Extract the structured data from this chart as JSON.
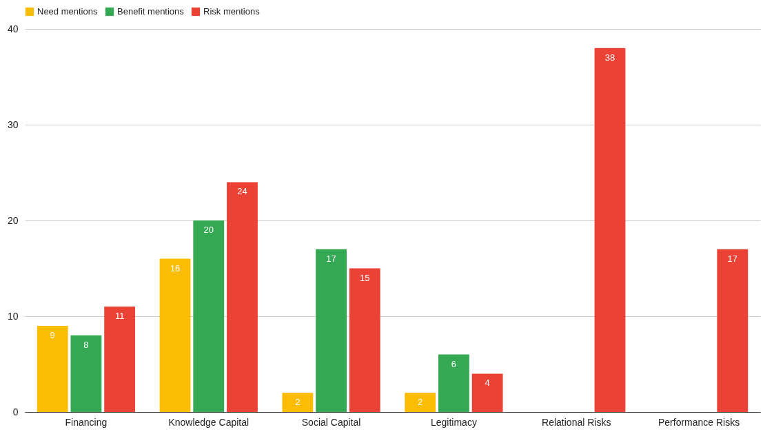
{
  "chart_data": {
    "type": "bar",
    "categories": [
      "Financing",
      "Knowledge Capital",
      "Social Capital",
      "Legitimacy",
      "Relational Risks",
      "Performance Risks"
    ],
    "series": [
      {
        "name": "Need mentions",
        "color": "#fbbc04",
        "values": [
          9,
          16,
          2,
          2,
          null,
          null
        ]
      },
      {
        "name": "Benefit mentions",
        "color": "#34a853",
        "values": [
          8,
          20,
          17,
          6,
          null,
          null
        ]
      },
      {
        "name": "Risk mentions",
        "color": "#ea4335",
        "values": [
          11,
          24,
          15,
          4,
          38,
          17
        ]
      }
    ],
    "ylim": [
      0,
      40
    ],
    "yticks": [
      0,
      10,
      20,
      30,
      40
    ],
    "grid": "y",
    "legend": "top",
    "data_labels": true
  }
}
